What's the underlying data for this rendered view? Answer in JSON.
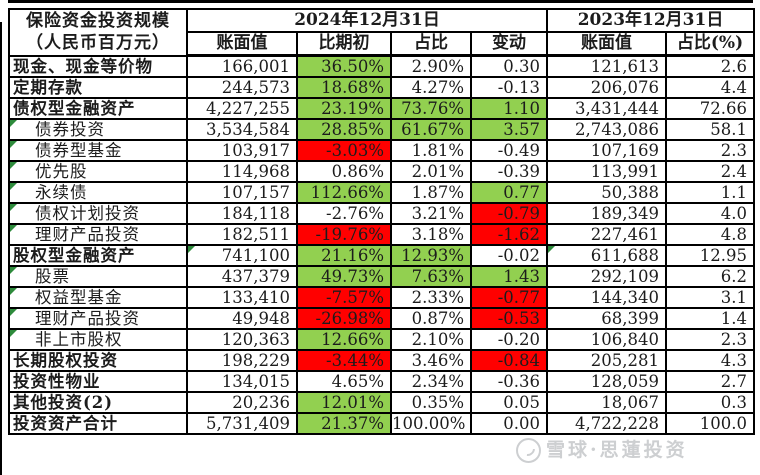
{
  "table": {
    "title_line1": "保险资金投资规模",
    "title_line2": "（人民币百万元）",
    "group_headers": {
      "y2024": "2024年12月31日",
      "y2023": "2023年12月31日"
    },
    "sub_headers": [
      "账面值",
      "比期初",
      "占比",
      "变动",
      "账面值",
      "占比(%)"
    ],
    "colors": {
      "positive_bg": "#92D050",
      "negative_bg": "#FF0000",
      "border": "#000000",
      "corner_marker": "#2E8B3C"
    },
    "rows": [
      {
        "label": "现金、现金等价物",
        "bold": true,
        "indent": false,
        "tri": false,
        "tri_cells": [],
        "v": [
          "166,001",
          "36.50%",
          "2.90%",
          "0.30",
          "121,613",
          "2.6"
        ],
        "bg": [
          "w",
          "g",
          "w",
          "w",
          "w",
          "w"
        ]
      },
      {
        "label": "定期存款",
        "bold": true,
        "indent": false,
        "tri": false,
        "tri_cells": [],
        "v": [
          "244,573",
          "18.68%",
          "4.27%",
          "-0.13",
          "206,076",
          "4.4"
        ],
        "bg": [
          "w",
          "g",
          "w",
          "w",
          "w",
          "w"
        ]
      },
      {
        "label": "债权型金融资产",
        "bold": true,
        "indent": false,
        "tri": false,
        "tri_cells": [],
        "v": [
          "4,227,255",
          "23.19%",
          "73.76%",
          "1.10",
          "3,431,444",
          "72.66"
        ],
        "bg": [
          "w",
          "g",
          "g",
          "g",
          "w",
          "w"
        ]
      },
      {
        "label": "债券投资",
        "bold": false,
        "indent": true,
        "tri": true,
        "tri_cells": [],
        "v": [
          "3,534,584",
          "28.85%",
          "61.67%",
          "3.57",
          "2,743,086",
          "58.1"
        ],
        "bg": [
          "w",
          "g",
          "g",
          "g",
          "w",
          "w"
        ]
      },
      {
        "label": "债券型基金",
        "bold": false,
        "indent": true,
        "tri": true,
        "tri_cells": [],
        "v": [
          "103,917",
          "-3.03%",
          "1.81%",
          "-0.49",
          "107,169",
          "2.3"
        ],
        "bg": [
          "w",
          "r",
          "w",
          "w",
          "w",
          "w"
        ]
      },
      {
        "label": "优先股",
        "bold": false,
        "indent": true,
        "tri": true,
        "tri_cells": [],
        "v": [
          "114,968",
          "0.86%",
          "2.01%",
          "-0.39",
          "113,991",
          "2.4"
        ],
        "bg": [
          "w",
          "w",
          "w",
          "w",
          "w",
          "w"
        ]
      },
      {
        "label": "永续债",
        "bold": false,
        "indent": true,
        "tri": true,
        "tri_cells": [],
        "v": [
          "107,157",
          "112.66%",
          "1.87%",
          "0.77",
          "50,388",
          "1.1"
        ],
        "bg": [
          "w",
          "g",
          "w",
          "g",
          "w",
          "w"
        ]
      },
      {
        "label": "债权计划投资",
        "bold": false,
        "indent": true,
        "tri": true,
        "tri_cells": [],
        "v": [
          "184,118",
          "-2.76%",
          "3.21%",
          "-0.79",
          "189,349",
          "4.0"
        ],
        "bg": [
          "w",
          "w",
          "w",
          "r",
          "w",
          "w"
        ]
      },
      {
        "label": "理财产品投资",
        "bold": false,
        "indent": true,
        "tri": true,
        "tri_cells": [],
        "v": [
          "182,511",
          "-19.76%",
          "3.18%",
          "-1.62",
          "227,461",
          "4.8"
        ],
        "bg": [
          "w",
          "r",
          "w",
          "r",
          "w",
          "w"
        ]
      },
      {
        "label": "股权型金融资产",
        "bold": true,
        "indent": false,
        "tri": false,
        "tri_cells": [
          0,
          4
        ],
        "v": [
          "741,100",
          "21.16%",
          "12.93%",
          "-0.02",
          "611,688",
          "12.95"
        ],
        "bg": [
          "w",
          "g",
          "g",
          "w",
          "w",
          "w"
        ]
      },
      {
        "label": "股票",
        "bold": false,
        "indent": true,
        "tri": true,
        "tri_cells": [],
        "v": [
          "437,379",
          "49.73%",
          "7.63%",
          "1.43",
          "292,109",
          "6.2"
        ],
        "bg": [
          "w",
          "g",
          "g",
          "g",
          "w",
          "w"
        ]
      },
      {
        "label": "权益型基金",
        "bold": false,
        "indent": true,
        "tri": true,
        "tri_cells": [],
        "v": [
          "133,410",
          "-7.57%",
          "2.33%",
          "-0.77",
          "144,340",
          "3.1"
        ],
        "bg": [
          "w",
          "r",
          "w",
          "r",
          "w",
          "w"
        ]
      },
      {
        "label": "理财产品投资",
        "bold": false,
        "indent": true,
        "tri": true,
        "tri_cells": [],
        "v": [
          "49,948",
          "-26.98%",
          "0.87%",
          "-0.53",
          "68,399",
          "1.4"
        ],
        "bg": [
          "w",
          "r",
          "w",
          "r",
          "w",
          "w"
        ]
      },
      {
        "label": "非上市股权",
        "bold": false,
        "indent": true,
        "tri": true,
        "tri_cells": [],
        "v": [
          "120,363",
          "12.66%",
          "2.10%",
          "-0.20",
          "106,840",
          "2.3"
        ],
        "bg": [
          "w",
          "g",
          "w",
          "w",
          "w",
          "w"
        ]
      },
      {
        "label": "长期股权投资",
        "bold": true,
        "indent": false,
        "tri": false,
        "tri_cells": [],
        "v": [
          "198,229",
          "-3.44%",
          "3.46%",
          "-0.84",
          "205,281",
          "4.3"
        ],
        "bg": [
          "w",
          "r",
          "w",
          "r",
          "w",
          "w"
        ]
      },
      {
        "label": "投资性物业",
        "bold": true,
        "indent": false,
        "tri": false,
        "tri_cells": [],
        "v": [
          "134,015",
          "4.65%",
          "2.34%",
          "-0.36",
          "128,059",
          "2.7"
        ],
        "bg": [
          "w",
          "w",
          "w",
          "w",
          "w",
          "w"
        ]
      },
      {
        "label": "其他投资(2)",
        "bold": true,
        "indent": false,
        "tri": false,
        "tri_cells": [],
        "v": [
          "20,236",
          "12.01%",
          "0.35%",
          "0.05",
          "18,067",
          "0.3"
        ],
        "bg": [
          "w",
          "g",
          "w",
          "w",
          "w",
          "w"
        ]
      },
      {
        "label": "投资资产合计",
        "bold": true,
        "indent": false,
        "tri": false,
        "tri_cells": [],
        "v": [
          "5,731,409",
          "21.37%",
          "100.00%",
          "0.00",
          "4,722,228",
          "100.0"
        ],
        "bg": [
          "w",
          "g",
          "w",
          "w",
          "w",
          "w"
        ]
      }
    ]
  },
  "watermark": {
    "text": "雪球·思蓮投资"
  }
}
